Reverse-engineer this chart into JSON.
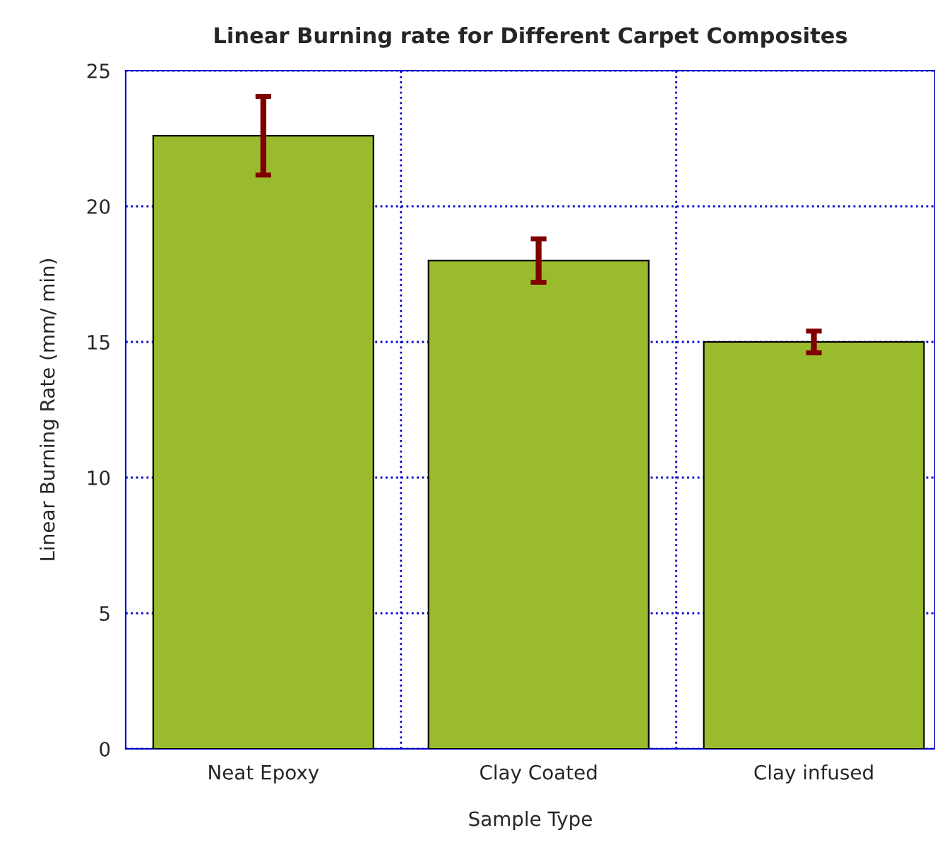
{
  "chart_data": {
    "type": "bar",
    "title": "Linear Burning rate for Different Carpet Composites",
    "xlabel": "Sample Type",
    "ylabel": "Linear Burning Rate (mm/ min)",
    "categories": [
      "Neat Epoxy",
      "Clay Coated",
      "Clay infused"
    ],
    "values": [
      22.6,
      18.0,
      15.0
    ],
    "errors": [
      1.45,
      0.8,
      0.4
    ],
    "color": "#9bbb2f",
    "ylim": [
      0,
      25
    ],
    "yticks": [
      0,
      5,
      10,
      15,
      20,
      25
    ],
    "grid": true
  }
}
